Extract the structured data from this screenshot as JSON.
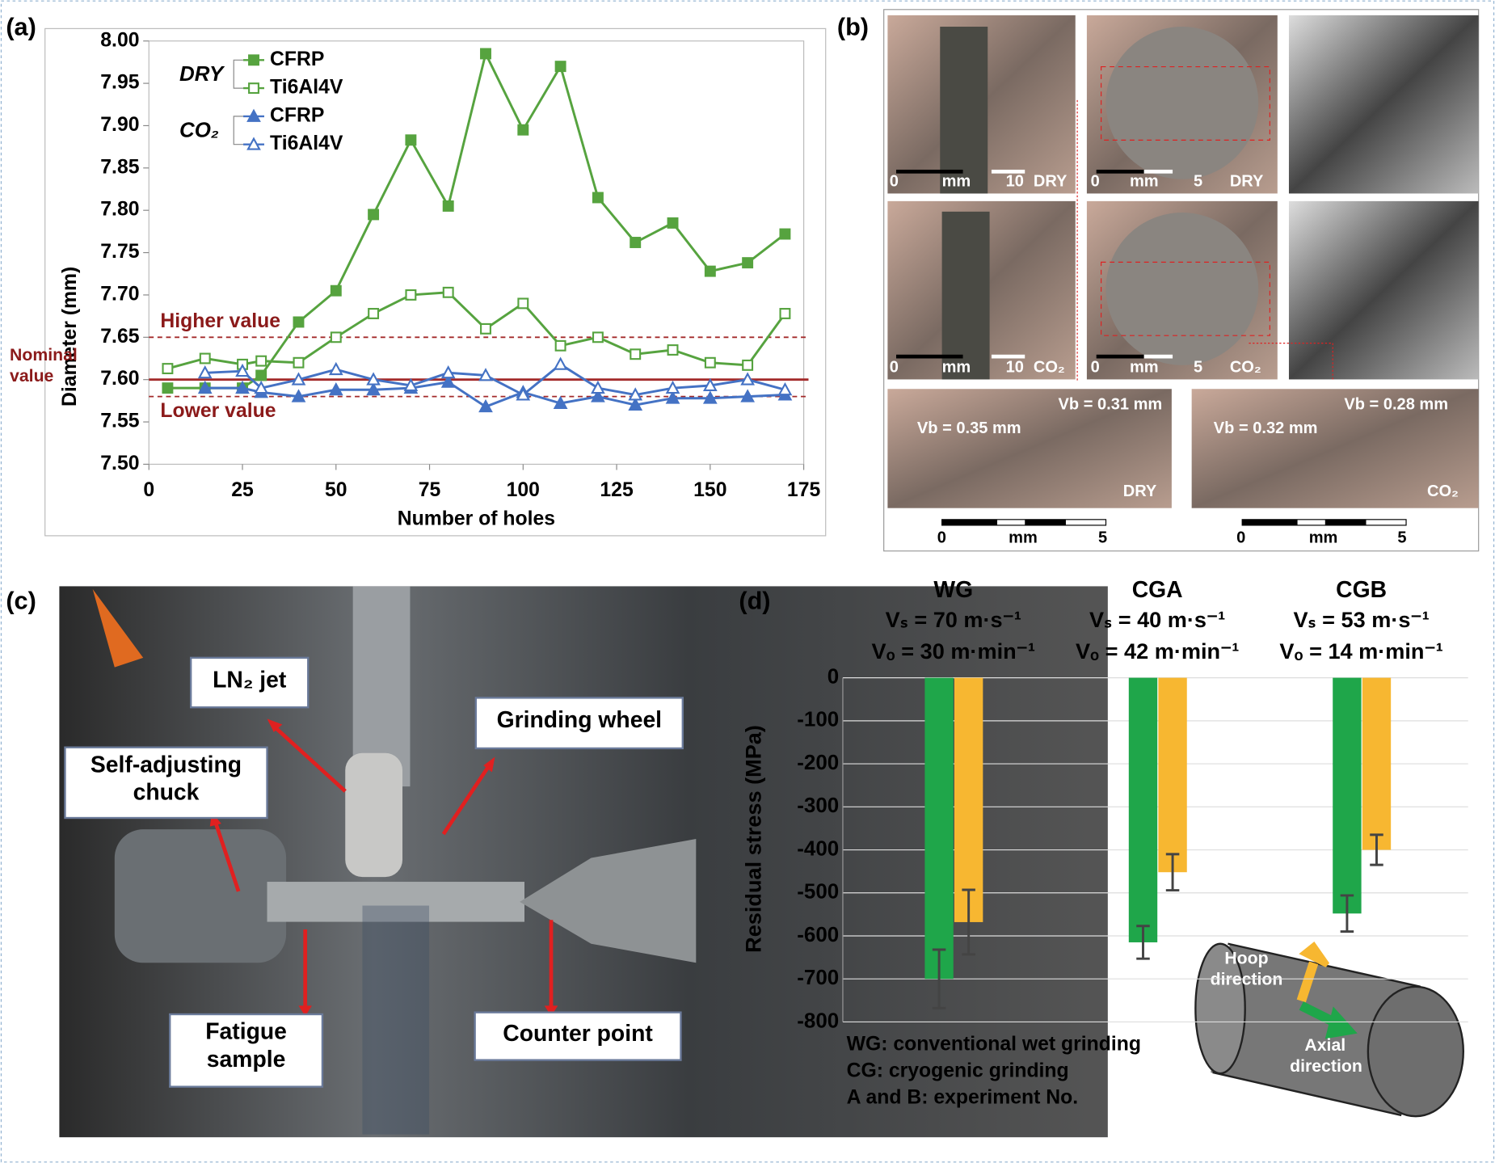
{
  "chart_data": [
    {
      "type": "line",
      "label": "(a)",
      "xlabel": "Number of holes",
      "ylabel": "Diameter (mm)",
      "x": [
        5,
        15,
        25,
        30,
        40,
        50,
        60,
        70,
        80,
        90,
        100,
        110,
        120,
        130,
        140,
        150,
        160,
        170
      ],
      "legend_groups": [
        "DRY",
        "CO₂"
      ],
      "series": [
        {
          "name": "CFRP",
          "group": 0,
          "color": "#56a33f",
          "marker": "square-filled",
          "values": [
            7.59,
            7.59,
            7.59,
            7.605,
            7.668,
            7.705,
            7.795,
            7.883,
            7.805,
            7.985,
            7.895,
            7.97,
            7.815,
            7.762,
            7.785,
            7.728,
            7.738,
            7.772
          ]
        },
        {
          "name": "Ti6Al4V",
          "group": 0,
          "color": "#56a33f",
          "marker": "square-open",
          "values": [
            7.613,
            7.625,
            7.618,
            7.622,
            7.62,
            7.65,
            7.678,
            7.7,
            7.703,
            7.66,
            7.69,
            7.64,
            7.65,
            7.63,
            7.635,
            7.62,
            7.617,
            7.678
          ]
        },
        {
          "name": "CFRP",
          "group": 1,
          "color": "#4472c4",
          "marker": "triangle-filled",
          "values": [
            null,
            7.59,
            7.59,
            7.585,
            7.58,
            7.588,
            7.588,
            7.59,
            7.597,
            7.568,
            7.585,
            7.572,
            7.58,
            7.57,
            7.578,
            7.578,
            7.58,
            7.582
          ]
        },
        {
          "name": "Ti6Al4V",
          "group": 1,
          "color": "#4472c4",
          "marker": "triangle-open",
          "values": [
            null,
            7.608,
            7.61,
            7.59,
            7.6,
            7.612,
            7.6,
            7.593,
            7.608,
            7.605,
            7.582,
            7.618,
            7.59,
            7.582,
            7.59,
            7.593,
            7.6,
            7.588
          ]
        }
      ],
      "reference_lines": [
        {
          "label": "Higher value",
          "value": 7.65,
          "style": "dashed"
        },
        {
          "label": "Nominal value",
          "value": 7.6,
          "style": "solid"
        },
        {
          "label": "Lower value",
          "value": 7.58,
          "style": "dashed"
        }
      ],
      "xlim": [
        0,
        175
      ],
      "xticks": [
        0,
        25,
        50,
        75,
        100,
        125,
        150,
        175
      ],
      "ylim": [
        7.5,
        8.0
      ],
      "yticks": [
        {
          "value": 7.5,
          "label": "7.50"
        },
        {
          "value": 7.55,
          "label": "7.55"
        },
        {
          "value": 7.6,
          "label": "7.60"
        },
        {
          "value": 7.65,
          "label": "7.65"
        },
        {
          "value": 7.7,
          "label": "7.70"
        },
        {
          "value": 7.75,
          "label": "7.75"
        },
        {
          "value": 7.8,
          "label": "7.80"
        },
        {
          "value": 7.85,
          "label": "7.85"
        },
        {
          "value": 7.9,
          "label": "7.90"
        },
        {
          "value": 7.95,
          "label": "7.95"
        },
        {
          "value": 8.0,
          "label": "8.00"
        }
      ]
    },
    {
      "type": "bar",
      "label": "(d)",
      "ylabel": "Residual stress (MPa)",
      "categories": [
        "WG",
        "CGA",
        "CGB"
      ],
      "category_notes": [
        [
          "Vₛ = 70 m·s⁻¹",
          "Vₒ = 30 m·min⁻¹"
        ],
        [
          "Vₛ = 40 m·s⁻¹",
          "Vₒ = 42 m·min⁻¹"
        ],
        [
          "Vₛ = 53 m·s⁻¹",
          "Vₒ = 14 m·min⁻¹"
        ]
      ],
      "series": [
        {
          "name": "Axial direction",
          "color": "#1fa64a",
          "values": [
            -700,
            -615,
            -548
          ],
          "errors": [
            68,
            38,
            42
          ]
        },
        {
          "name": "Hoop direction",
          "color": "#f7b731",
          "values": [
            -568,
            -452,
            -400
          ],
          "errors": [
            75,
            42,
            35
          ]
        }
      ],
      "ylim": [
        -800,
        0
      ],
      "yticks": [
        0,
        -100,
        -200,
        -300,
        -400,
        -500,
        -600,
        -700,
        -800
      ],
      "grid": true,
      "footnotes": [
        "WG: conventional wet grinding",
        "CG: cryogenic grinding",
        "A and B: experiment No."
      ]
    }
  ],
  "photo_b": {
    "label": "(b)",
    "texts": [
      "0",
      "mm",
      "10",
      "DRY",
      "0",
      "mm",
      "5",
      "DRY",
      "0",
      "mm",
      "10",
      "CO₂",
      "0",
      "mm",
      "5",
      "CO₂",
      "Vb = 0.31 mm",
      "Vb = 0.35 mm",
      "DRY",
      "Vb = 0.32 mm",
      "Vb = 0.28 mm",
      "CO₂",
      "0",
      "mm",
      "5",
      "0",
      "mm",
      "5"
    ]
  },
  "photo_c": {
    "label": "(c)",
    "callouts": [
      "LN₂ jet",
      "Grinding wheel",
      "Self-adjusting chuck",
      "Fatigue sample",
      "Counter point"
    ]
  }
}
